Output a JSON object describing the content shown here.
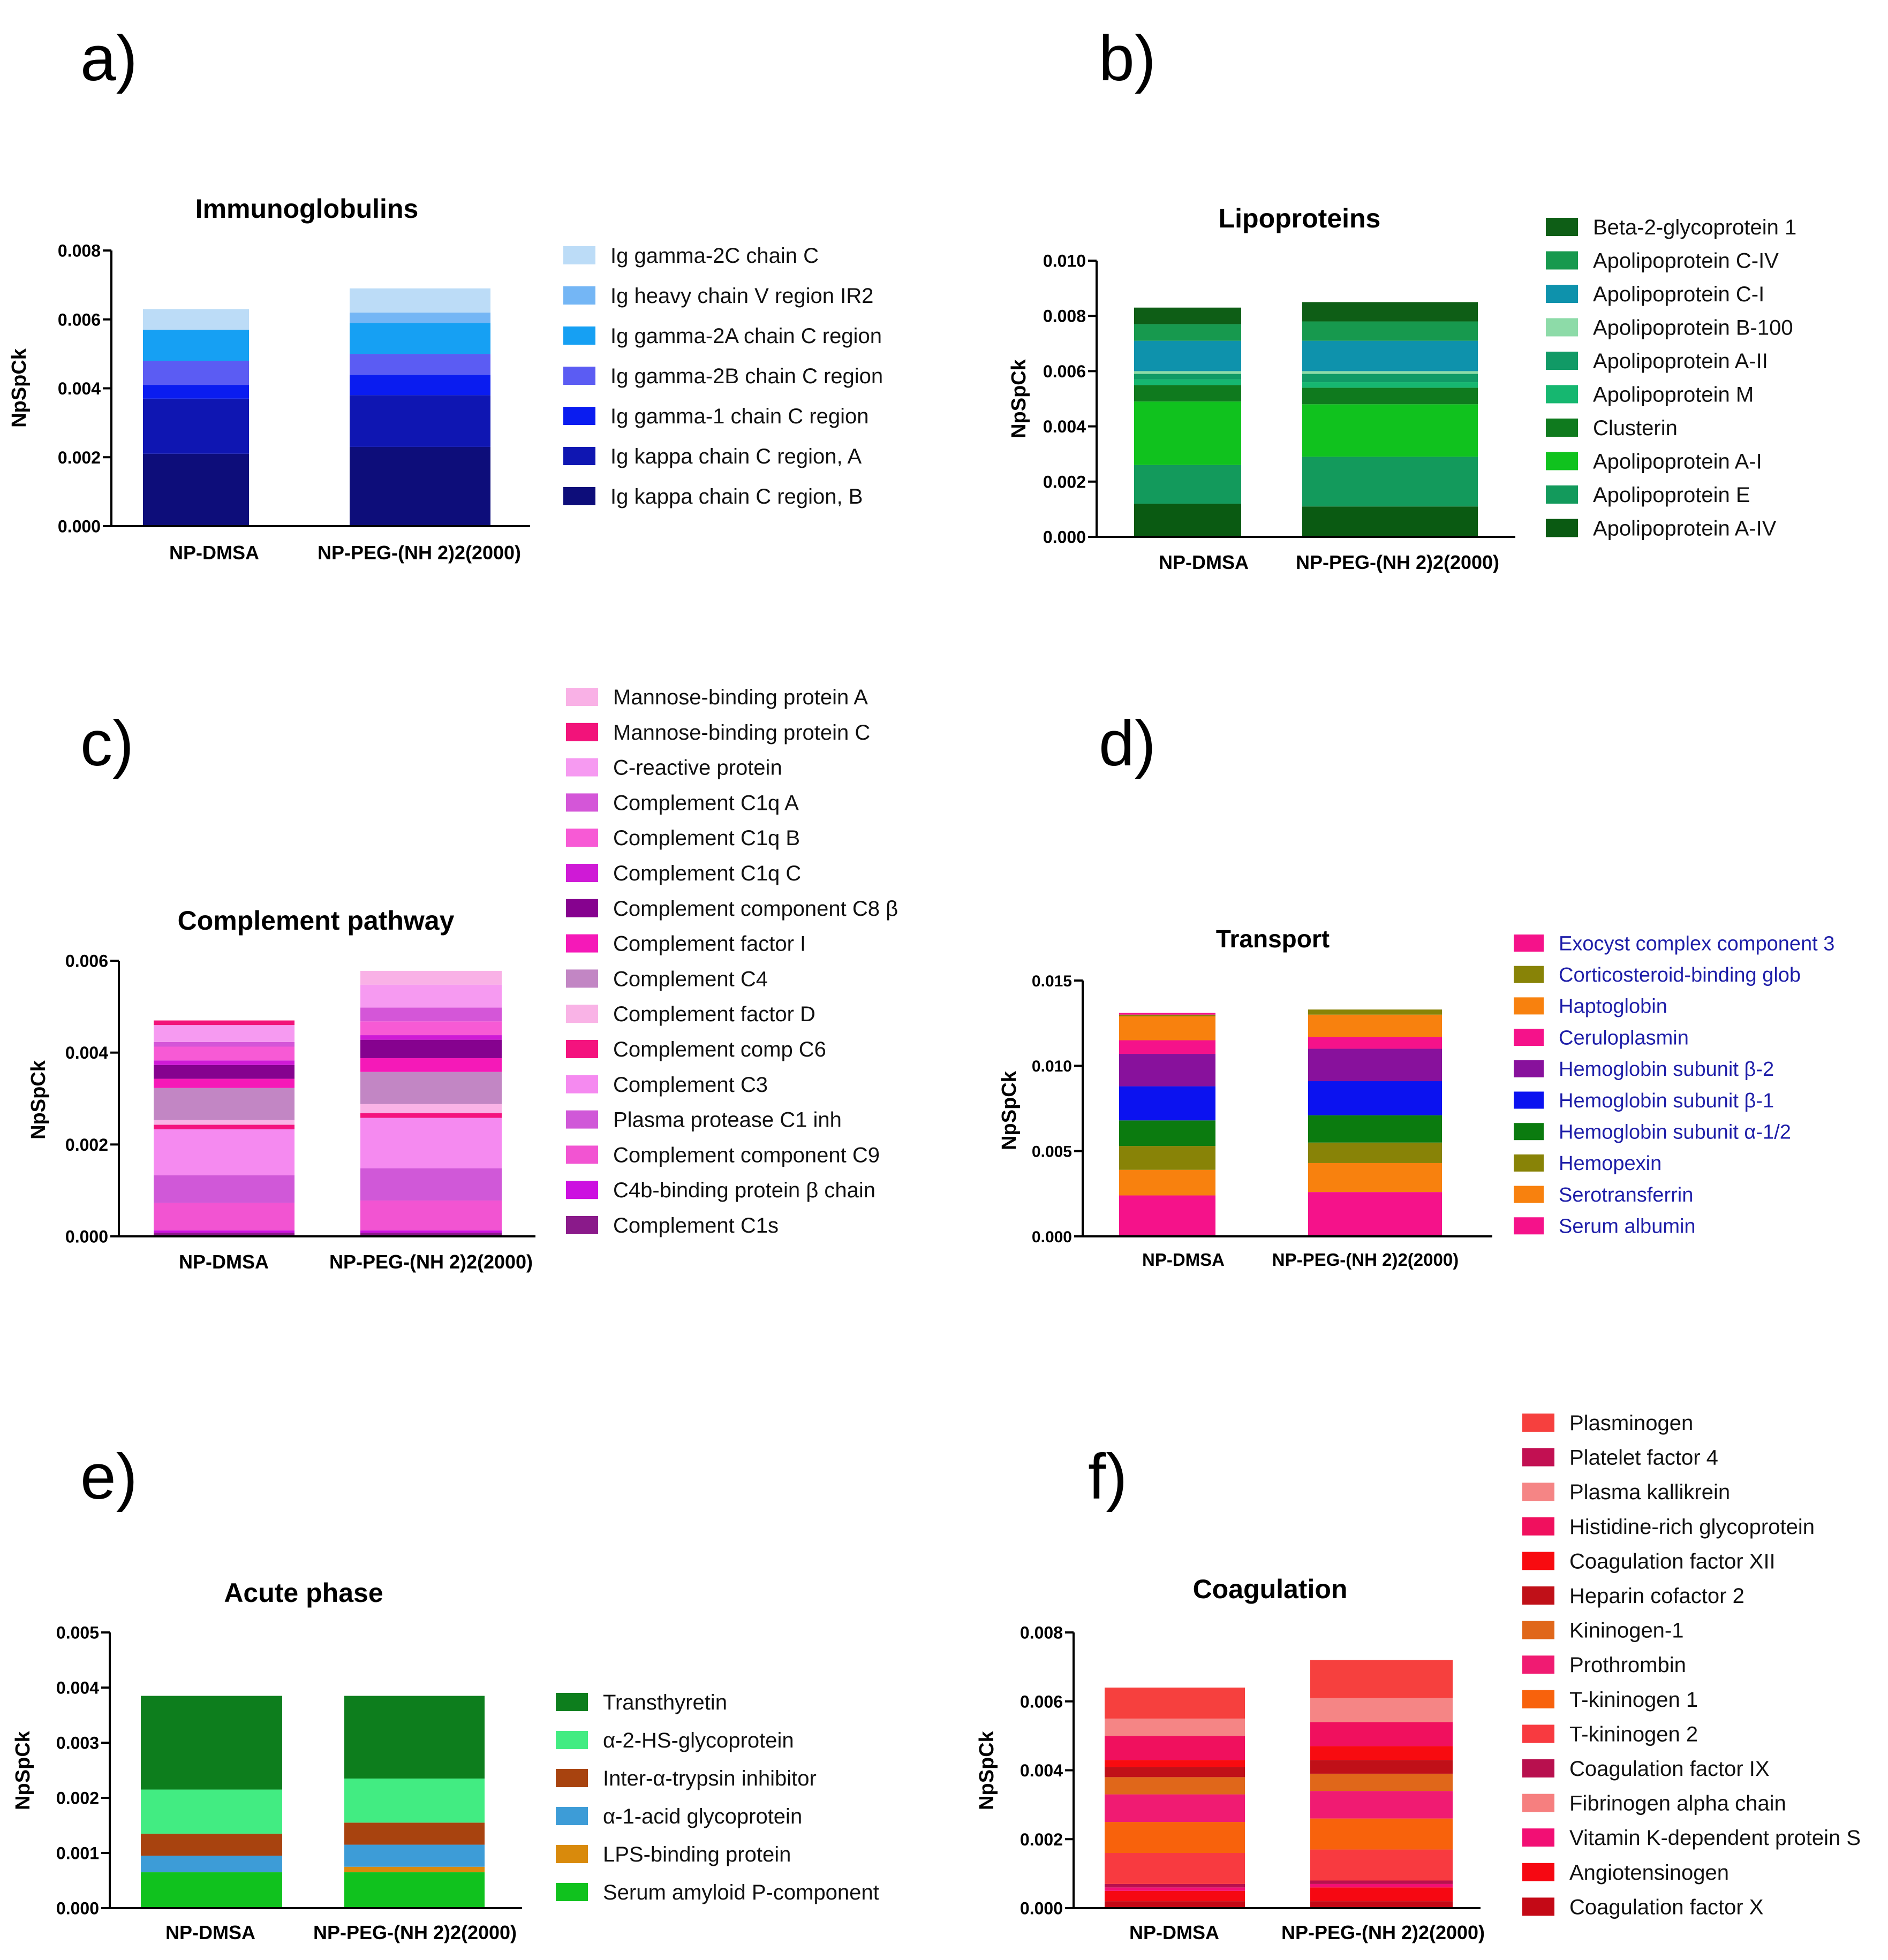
{
  "figure": {
    "panels": [
      {
        "label": "a)"
      },
      {
        "label": "b)"
      },
      {
        "label": "c)"
      },
      {
        "label": "d)"
      },
      {
        "label": "e)"
      },
      {
        "label": "f)"
      }
    ]
  },
  "chart_data": [
    {
      "type": "bar",
      "stacked": true,
      "panel": "a)",
      "title": "Immunoglobulins",
      "ylabel": "NpSpCk",
      "categories": [
        "NP-DMSA",
        "NP-PEG-(NH 2)2(2000)"
      ],
      "ylim": [
        0,
        0.008
      ],
      "yticks": [
        "0.000",
        "0.002",
        "0.004",
        "0.006",
        "0.008"
      ],
      "series": [
        {
          "name": "Ig kappa chain C region, B",
          "color": "#0d0d7a",
          "values": [
            0.0021,
            0.0023
          ]
        },
        {
          "name": "Ig kappa chain C region, A",
          "color": "#0f16b2",
          "values": [
            0.0016,
            0.0015
          ]
        },
        {
          "name": "Ig gamma-1 chain C region",
          "color": "#0a1cf0",
          "values": [
            0.0004,
            0.0006
          ]
        },
        {
          "name": "Ig gamma-2B chain C region",
          "color": "#5b5cf3",
          "values": [
            0.0007,
            0.0006
          ]
        },
        {
          "name": "Ig gamma-2A chain C region",
          "color": "#16a0f3",
          "values": [
            0.0009,
            0.0009
          ]
        },
        {
          "name": "Ig heavy chain V region IR2",
          "color": "#74b6f5",
          "values": [
            0.0,
            0.0003
          ]
        },
        {
          "name": "Ig gamma-2C chain C",
          "color": "#bcdcf7",
          "values": [
            0.0006,
            0.0007
          ]
        }
      ]
    },
    {
      "type": "bar",
      "stacked": true,
      "panel": "b)",
      "title": "Lipoproteins",
      "ylabel": "NpSpCk",
      "categories": [
        "NP-DMSA",
        "NP-PEG-(NH 2)2(2000)"
      ],
      "ylim": [
        0,
        0.01
      ],
      "yticks": [
        "0.000",
        "0.002",
        "0.004",
        "0.006",
        "0.008",
        "0.010"
      ],
      "series": [
        {
          "name": "Apolipoprotein A-IV",
          "color": "#0a5a12",
          "values": [
            0.0012,
            0.0011
          ]
        },
        {
          "name": "Apolipoprotein E",
          "color": "#139a5c",
          "values": [
            0.0014,
            0.0018
          ]
        },
        {
          "name": "Apolipoprotein A-I",
          "color": "#10c21e",
          "values": [
            0.0023,
            0.0019
          ]
        },
        {
          "name": "Clusterin",
          "color": "#0f7a1e",
          "values": [
            0.0006,
            0.0006
          ]
        },
        {
          "name": "Apolipoprotein M",
          "color": "#16b770",
          "values": [
            0.0002,
            0.0002
          ]
        },
        {
          "name": "Apolipoprotein A-II",
          "color": "#119a66",
          "values": [
            0.0002,
            0.0003
          ]
        },
        {
          "name": "Apolipoprotein B-100",
          "color": "#8ddba8",
          "values": [
            0.0001,
            0.0001
          ]
        },
        {
          "name": "Apolipoprotein C-I",
          "color": "#0e92ac",
          "values": [
            0.0011,
            0.0011
          ]
        },
        {
          "name": "Apolipoprotein C-IV",
          "color": "#17994e",
          "values": [
            0.0006,
            0.0007
          ]
        },
        {
          "name": "Beta-2-glycoprotein 1",
          "color": "#0e5e16",
          "values": [
            0.0006,
            0.0007
          ]
        }
      ]
    },
    {
      "type": "bar",
      "stacked": true,
      "panel": "c)",
      "title": "Complement pathway",
      "ylabel": "NpSpCk",
      "categories": [
        "NP-DMSA",
        "NP-PEG-(NH 2)2(2000)"
      ],
      "ylim": [
        0,
        0.006
      ],
      "yticks": [
        "0.000",
        "0.002",
        "0.004",
        "0.006"
      ],
      "series": [
        {
          "name": "Complement C1s",
          "color": "#8a1a8a",
          "values": [
            8e-05,
            8e-05
          ]
        },
        {
          "name": "C4b-binding protein β chain",
          "color": "#cc10e0",
          "values": [
            5e-05,
            5e-05
          ]
        },
        {
          "name": "Complement component C9",
          "color": "#f254d2",
          "values": [
            0.0006,
            0.00065
          ]
        },
        {
          "name": "Plasma protease C1 inh",
          "color": "#d058d8",
          "values": [
            0.0006,
            0.0007
          ]
        },
        {
          "name": "Complement C3",
          "color": "#f58af0",
          "values": [
            0.001,
            0.0011
          ]
        },
        {
          "name": "Complement comp C6",
          "color": "#f4137e",
          "values": [
            0.0001,
            0.0001
          ]
        },
        {
          "name": "Complement factor D",
          "color": "#f9b3e6",
          "values": [
            0.0001,
            0.0002
          ]
        },
        {
          "name": "Complement C4",
          "color": "#c286c4",
          "values": [
            0.0007,
            0.0007
          ]
        },
        {
          "name": "Complement factor I",
          "color": "#f519b8",
          "values": [
            0.0002,
            0.0003
          ]
        },
        {
          "name": "Complement component C8 β",
          "color": "#86028f",
          "values": [
            0.0003,
            0.0004
          ]
        },
        {
          "name": "Complement C1q C",
          "color": "#cf1ad6",
          "values": [
            0.0001,
            0.0001
          ]
        },
        {
          "name": "Complement C1q B",
          "color": "#f75ad5",
          "values": [
            0.0003,
            0.0003
          ]
        },
        {
          "name": "Complement C1q A",
          "color": "#d456d8",
          "values": [
            0.0001,
            0.0003
          ]
        },
        {
          "name": "C-reactive protein",
          "color": "#f69af1",
          "values": [
            0.00037,
            0.0005
          ]
        },
        {
          "name": "Mannose-binding protein C",
          "color": "#f2137a",
          "values": [
            0.0001,
            0.0
          ]
        },
        {
          "name": "Mannose-binding protein A",
          "color": "#f9b1e6",
          "values": [
            0.0,
            0.0003
          ]
        }
      ]
    },
    {
      "type": "bar",
      "stacked": true,
      "panel": "d)",
      "title": "Transport",
      "ylabel": "NpSpCk",
      "categories": [
        "NP-DMSA",
        "NP-PEG-(NH 2)2(2000)"
      ],
      "ylim": [
        0,
        0.015
      ],
      "yticks": [
        "0.000",
        "0.005",
        "0.010",
        "0.015"
      ],
      "series": [
        {
          "name": "Serum albumin",
          "color": "#f5128a",
          "values": [
            0.0024,
            0.0026
          ]
        },
        {
          "name": "Serotransferrin",
          "color": "#f8810e",
          "values": [
            0.0015,
            0.0017
          ]
        },
        {
          "name": "Hemopexin",
          "color": "#888307",
          "values": [
            0.0014,
            0.0012
          ]
        },
        {
          "name": "Hemoglobin subunit α-1/2",
          "color": "#0b7b0f",
          "values": [
            0.0015,
            0.0016
          ]
        },
        {
          "name": "Hemoglobin subunit β-1",
          "color": "#0b12f0",
          "values": [
            0.002,
            0.002
          ]
        },
        {
          "name": "Hemoglobin subunit β-2",
          "color": "#88119c",
          "values": [
            0.0019,
            0.0019
          ]
        },
        {
          "name": "Ceruloplasmin",
          "color": "#f5128a",
          "values": [
            0.0008,
            0.0007
          ]
        },
        {
          "name": "Haptoglobin",
          "color": "#f8810e",
          "values": [
            0.0014,
            0.0013
          ]
        },
        {
          "name": "Corticosteroid-binding glob",
          "color": "#888307",
          "values": [
            0.0001,
            0.0003
          ]
        },
        {
          "name": "Exocyst complex component 3",
          "color": "#f5128a",
          "values": [
            0.0001,
            0.0
          ]
        }
      ]
    },
    {
      "type": "bar",
      "stacked": true,
      "panel": "e)",
      "title": "Acute phase",
      "ylabel": "NpSpCk",
      "categories": [
        "NP-DMSA",
        "NP-PEG-(NH 2)2(2000)"
      ],
      "ylim": [
        0,
        0.005
      ],
      "yticks": [
        "0.000",
        "0.001",
        "0.002",
        "0.003",
        "0.004",
        "0.005"
      ],
      "series": [
        {
          "name": "Serum amyloid P-component",
          "color": "#10c21e",
          "values": [
            0.00065,
            0.00065
          ]
        },
        {
          "name": "LPS-binding protein",
          "color": "#d98a0c",
          "values": [
            0.0,
            0.0001
          ]
        },
        {
          "name": "α-1-acid glycoprotein",
          "color": "#3d9cd7",
          "values": [
            0.0003,
            0.0004
          ]
        },
        {
          "name": "Inter-α-trypsin inhibitor",
          "color": "#a8430f",
          "values": [
            0.0004,
            0.0004
          ]
        },
        {
          "name": "α-2-HS-glycoprotein",
          "color": "#42ec82",
          "values": [
            0.0008,
            0.0008
          ]
        },
        {
          "name": "Transthyretin",
          "color": "#0d7e1d",
          "values": [
            0.0017,
            0.0015
          ]
        }
      ]
    },
    {
      "type": "bar",
      "stacked": true,
      "panel": "f)",
      "title": "Coagulation",
      "ylabel": "NpSpCk",
      "categories": [
        "NP-DMSA",
        "NP-PEG-(NH 2)2(2000)"
      ],
      "ylim": [
        0,
        0.008
      ],
      "yticks": [
        "0.000",
        "0.002",
        "0.004",
        "0.006",
        "0.008"
      ],
      "series": [
        {
          "name": "Coagulation factor X",
          "color": "#c40916",
          "values": [
            0.0002,
            0.0002
          ]
        },
        {
          "name": "Angiotensinogen",
          "color": "#f60812",
          "values": [
            0.0003,
            0.0004
          ]
        },
        {
          "name": "Vitamin K-dependent protein S",
          "color": "#f20f74",
          "values": [
            0.0001,
            0.0001
          ]
        },
        {
          "name": "Fibrinogen alpha chain",
          "color": "#f67f7f",
          "values": [
            0.0,
            0.0
          ]
        },
        {
          "name": "Coagulation factor IX",
          "color": "#b8104e",
          "values": [
            0.0001,
            0.0001
          ]
        },
        {
          "name": "T-kininogen 2",
          "color": "#f83a40",
          "values": [
            0.0009,
            0.0009
          ]
        },
        {
          "name": "T-kininogen 1",
          "color": "#f8620c",
          "values": [
            0.0009,
            0.0009
          ]
        },
        {
          "name": "Prothrombin",
          "color": "#f01b72",
          "values": [
            0.0008,
            0.0008
          ]
        },
        {
          "name": "Kininogen-1",
          "color": "#e0671a",
          "values": [
            0.0005,
            0.0005
          ]
        },
        {
          "name": "Heparin cofactor 2",
          "color": "#c01018",
          "values": [
            0.0003,
            0.0004
          ]
        },
        {
          "name": "Coagulation factor XII",
          "color": "#f80b10",
          "values": [
            0.0002,
            0.0004
          ]
        },
        {
          "name": "Histidine-rich glycoprotein",
          "color": "#f0105e",
          "values": [
            0.0007,
            0.0007
          ]
        },
        {
          "name": "Plasma kallikrein",
          "color": "#f58585",
          "values": [
            0.0005,
            0.0007
          ]
        },
        {
          "name": "Platelet factor 4",
          "color": "#c21052",
          "values": [
            0.0,
            0.0
          ]
        },
        {
          "name": "Plasminogen",
          "color": "#f6403e",
          "values": [
            0.0009,
            0.0011
          ]
        }
      ]
    }
  ]
}
